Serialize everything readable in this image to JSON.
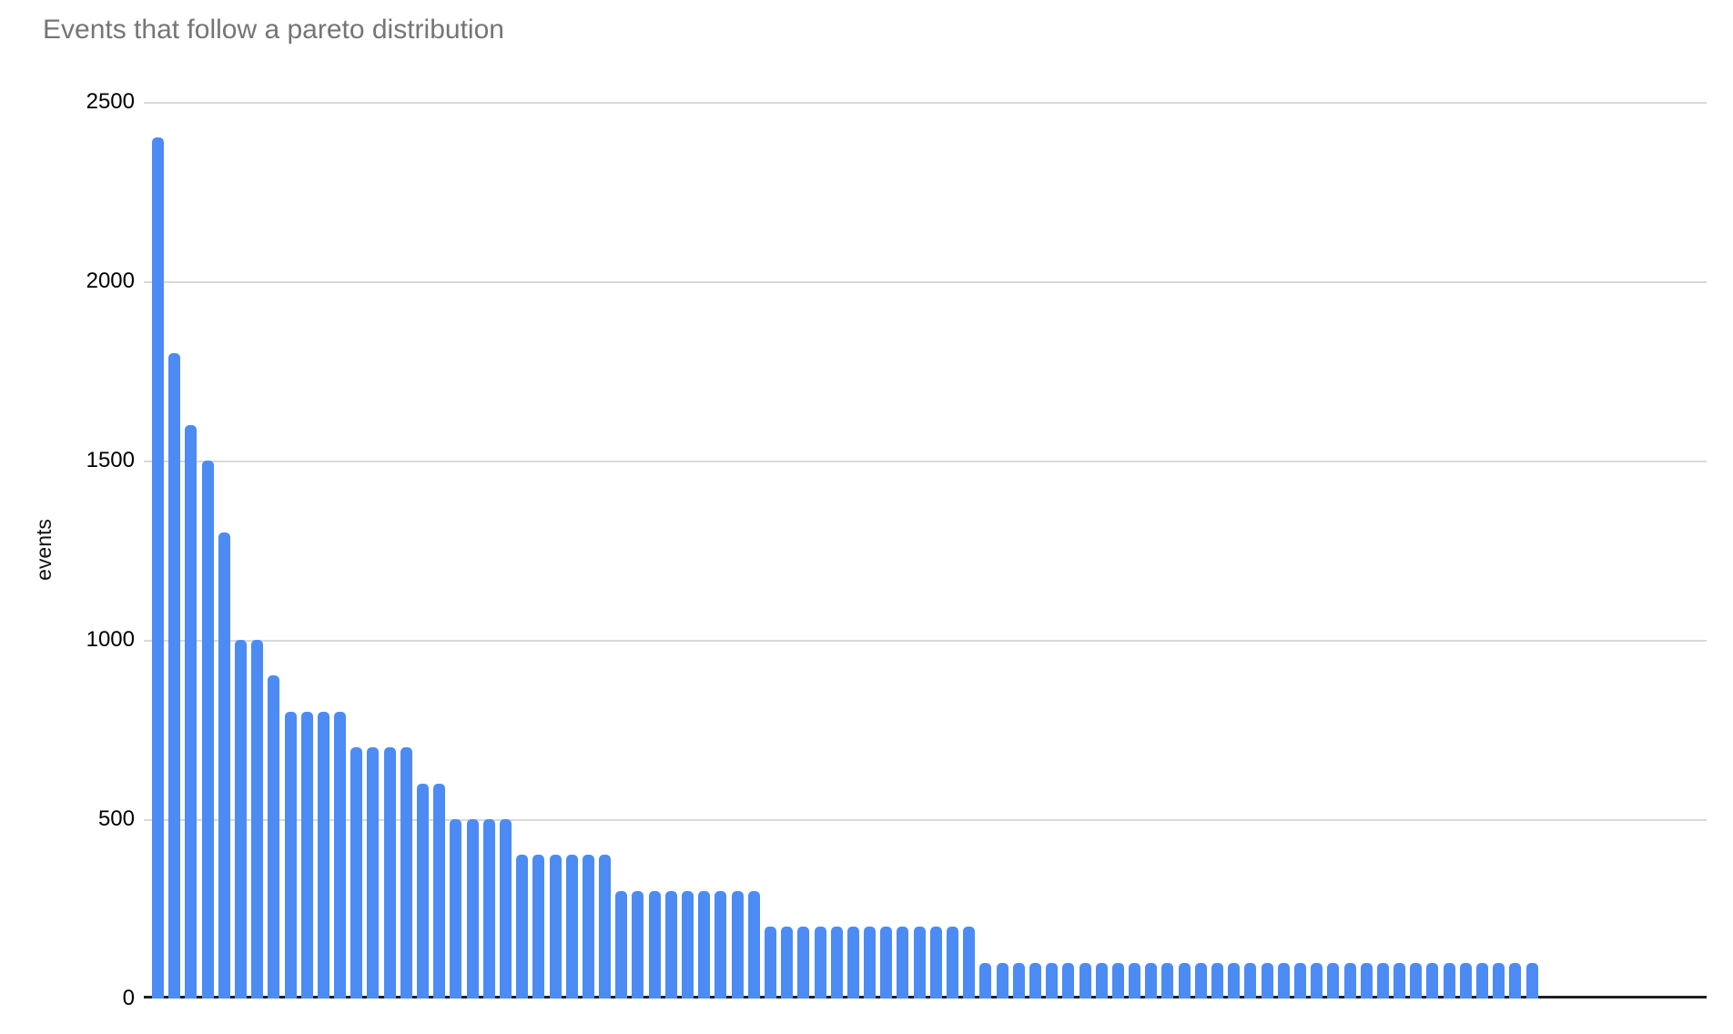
{
  "chart_data": {
    "type": "bar",
    "title": "Events that follow a pareto distribution",
    "ylabel": "events",
    "xlabel": "",
    "ylim": [
      0,
      2500
    ],
    "yticks": [
      0,
      500,
      1000,
      1500,
      2000,
      2500
    ],
    "grid": true,
    "legend": false,
    "x_tick_labels_visible": false,
    "n_bars": 84,
    "values": [
      2400,
      1800,
      1600,
      1500,
      1300,
      1000,
      1000,
      900,
      800,
      800,
      800,
      800,
      700,
      700,
      700,
      700,
      600,
      600,
      500,
      500,
      500,
      500,
      400,
      400,
      400,
      400,
      400,
      400,
      300,
      300,
      300,
      300,
      300,
      300,
      300,
      300,
      300,
      200,
      200,
      200,
      200,
      200,
      200,
      200,
      200,
      200,
      200,
      200,
      200,
      200,
      100,
      100,
      100,
      100,
      100,
      100,
      100,
      100,
      100,
      100,
      100,
      100,
      100,
      100,
      100,
      100,
      100,
      100,
      100,
      100,
      100,
      100,
      100,
      100,
      100,
      100,
      100,
      100,
      100,
      100,
      100,
      100,
      100,
      100
    ],
    "colors": {
      "bar": "#4c8bf4",
      "gridline": "#d9d9d9",
      "axis_line": "#212121",
      "title_text": "#757575",
      "tick_text": "#000000"
    }
  }
}
